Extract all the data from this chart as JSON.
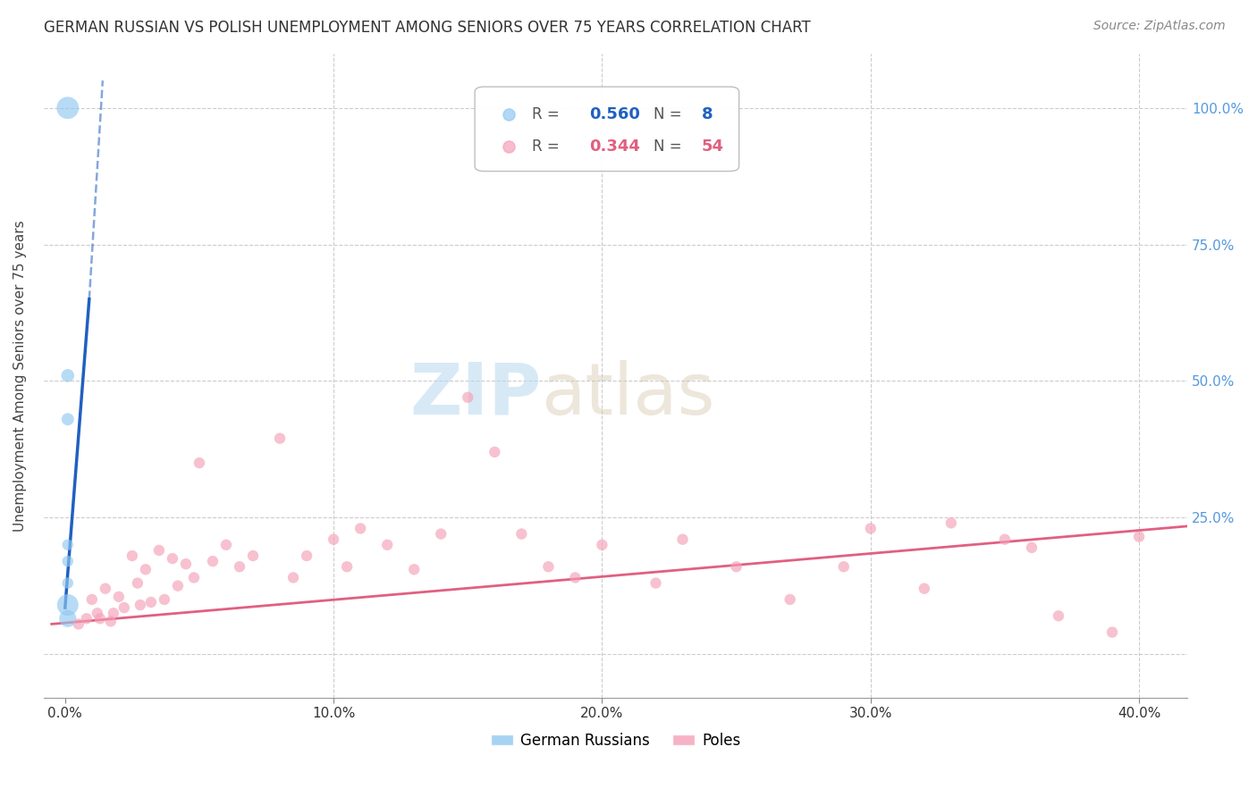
{
  "title": "GERMAN RUSSIAN VS POLISH UNEMPLOYMENT AMONG SENIORS OVER 75 YEARS CORRELATION CHART",
  "source": "Source: ZipAtlas.com",
  "ylabel_label": "Unemployment Among Seniors over 75 years",
  "x_ticks": [
    0.0,
    0.1,
    0.2,
    0.3,
    0.4
  ],
  "x_tick_labels": [
    "0.0%",
    "10.0%",
    "20.0%",
    "30.0%",
    "40.0%"
  ],
  "y_ticks": [
    0.0,
    0.25,
    0.5,
    0.75,
    1.0
  ],
  "y_tick_labels_right": [
    "",
    "25.0%",
    "50.0%",
    "75.0%",
    "100.0%"
  ],
  "xlim": [
    -0.008,
    0.418
  ],
  "ylim": [
    -0.08,
    1.1
  ],
  "gr_color": "#91C8F0",
  "poles_color": "#F4A0B8",
  "gr_line_color": "#2060C0",
  "poles_line_color": "#E06080",
  "background_color": "#ffffff",
  "grid_color": "#cccccc",
  "watermark_zip": "ZIP",
  "watermark_atlas": "atlas",
  "german_russians_x": [
    0.001,
    0.001,
    0.001,
    0.001,
    0.001,
    0.001,
    0.001,
    0.001
  ],
  "german_russians_y": [
    1.0,
    0.51,
    0.43,
    0.2,
    0.17,
    0.13,
    0.09,
    0.065
  ],
  "german_russians_size": [
    320,
    110,
    100,
    80,
    80,
    80,
    300,
    190
  ],
  "gr_line_x0": 0.0,
  "gr_line_y0": 0.085,
  "gr_line_x1": 0.009,
  "gr_line_y1": 0.65,
  "gr_line_dash_x0": 0.009,
  "gr_line_dash_y0": 0.65,
  "gr_line_dash_x1": 0.014,
  "gr_line_dash_y1": 1.05,
  "poles_line_x0": -0.005,
  "poles_line_y0": 0.055,
  "poles_line_x1": 0.42,
  "poles_line_y1": 0.235,
  "poles_x": [
    0.005,
    0.008,
    0.01,
    0.012,
    0.013,
    0.015,
    0.017,
    0.018,
    0.02,
    0.022,
    0.025,
    0.027,
    0.028,
    0.03,
    0.032,
    0.035,
    0.037,
    0.04,
    0.042,
    0.045,
    0.048,
    0.05,
    0.055,
    0.06,
    0.065,
    0.07,
    0.08,
    0.085,
    0.09,
    0.1,
    0.105,
    0.11,
    0.12,
    0.13,
    0.14,
    0.15,
    0.16,
    0.17,
    0.18,
    0.19,
    0.2,
    0.22,
    0.23,
    0.25,
    0.27,
    0.29,
    0.3,
    0.32,
    0.33,
    0.35,
    0.36,
    0.37,
    0.39,
    0.4
  ],
  "poles_y": [
    0.055,
    0.065,
    0.1,
    0.075,
    0.065,
    0.12,
    0.06,
    0.075,
    0.105,
    0.085,
    0.18,
    0.13,
    0.09,
    0.155,
    0.095,
    0.19,
    0.1,
    0.175,
    0.125,
    0.165,
    0.14,
    0.35,
    0.17,
    0.2,
    0.16,
    0.18,
    0.395,
    0.14,
    0.18,
    0.21,
    0.16,
    0.23,
    0.2,
    0.155,
    0.22,
    0.47,
    0.37,
    0.22,
    0.16,
    0.14,
    0.2,
    0.13,
    0.21,
    0.16,
    0.1,
    0.16,
    0.23,
    0.12,
    0.24,
    0.21,
    0.195,
    0.07,
    0.04,
    0.215
  ],
  "poles_size": [
    80,
    80,
    80,
    80,
    80,
    80,
    80,
    80,
    80,
    80,
    80,
    80,
    80,
    80,
    80,
    80,
    80,
    80,
    80,
    80,
    80,
    80,
    80,
    80,
    80,
    80,
    80,
    80,
    80,
    80,
    80,
    80,
    80,
    80,
    80,
    80,
    80,
    80,
    80,
    80,
    80,
    80,
    80,
    80,
    80,
    80,
    80,
    80,
    80,
    80,
    80,
    80,
    80,
    80
  ]
}
